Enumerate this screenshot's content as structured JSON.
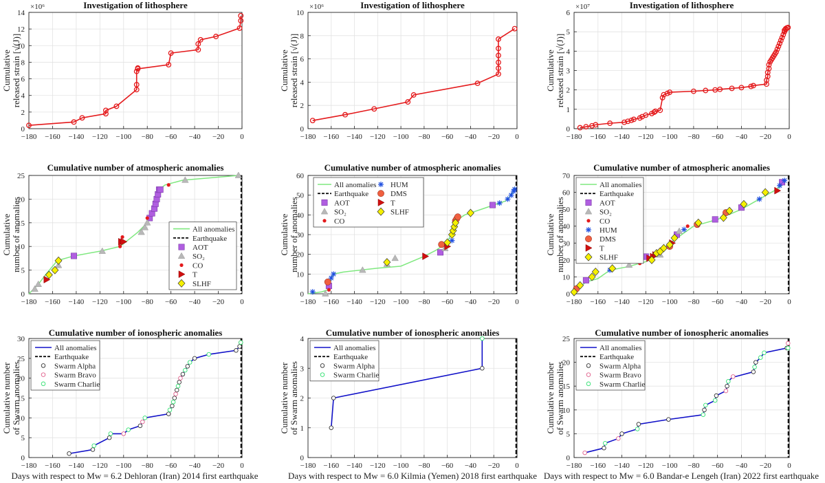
{
  "figure": {
    "panel_titles": {
      "litho": "Investigation of lithosphere",
      "atmo": "Cumulative number of atmospheric anomalies",
      "iono": "Cumulative number of ionospheric anomalies"
    },
    "ylabels": {
      "litho": [
        "Cumulative",
        "released strain [√(J)]"
      ],
      "atmo": [
        "Cumulative",
        "number of anomalies"
      ],
      "iono": [
        "Cumulative number",
        "of Swarm anomalies"
      ]
    },
    "column_xlabels": [
      "Days with respect to Mw = 6.2 Dehloran (Iran) 2014 first earthquake",
      "Days with respect to Mw = 6.0 Kilmia (Yemen) 2018 first earthquake",
      "Days with respect to Mw = 6.0 Bandar-e Lengeh (Iran) 2022 first earthquake"
    ],
    "multipliers": [
      "×10⁶",
      "×10⁶",
      "×10⁷"
    ]
  },
  "legend_labels": {
    "all": "All anomalies",
    "eq": "Earthquake",
    "AOT": "AOT",
    "SO2": "SO₂",
    "CO": "CO",
    "HUM": "HUM",
    "DMS": "DMS",
    "T": "T",
    "SLHF": "SLHF",
    "alpha": "Swarm Alpha",
    "bravo": "Swarm Bravo",
    "charlie": "Swarm Charlie"
  },
  "colors": {
    "litho_line": "#e41a1c",
    "atmo_line": "#7fe87f",
    "iono_line": "#1010c8",
    "AOT": "#b05ee0",
    "SO2": "#b8b8b8",
    "CO": "#e41a1c",
    "HUM": "#1f4fe0",
    "DMS": "#f06040",
    "T": "#d01010",
    "SLHF": "#f5f000",
    "alpha": "#333333",
    "bravo": "#e0608c",
    "charlie": "#30e070"
  },
  "chart_data": [
    {
      "id": "litho-1",
      "type": "line",
      "title": "Investigation of lithosphere",
      "xlim": [
        -180,
        0
      ],
      "ylim": [
        0,
        14000000
      ],
      "multiplier": "×10⁶",
      "xticks": [
        -180,
        -160,
        -140,
        -120,
        -100,
        -80,
        -60,
        -40,
        -20,
        0
      ],
      "yticks": [
        0,
        2,
        4,
        6,
        8,
        10,
        12,
        14
      ],
      "x": [
        -180,
        -142,
        -135,
        -115,
        -115,
        -106,
        -89,
        -89,
        -89,
        -88,
        -88,
        -62,
        -60,
        -37,
        -37,
        -35,
        -22,
        -2,
        -1,
        -1
      ],
      "y": [
        0.4,
        0.8,
        1.3,
        1.8,
        2.2,
        2.7,
        4.7,
        5.3,
        6.9,
        7.3,
        7.2,
        7.7,
        9.1,
        9.5,
        10.2,
        10.7,
        11.1,
        12.1,
        13.0,
        13.6
      ]
    },
    {
      "id": "litho-2",
      "type": "line",
      "title": "Investigation of lithosphere",
      "xlim": [
        -180,
        0
      ],
      "ylim": [
        0,
        10000000
      ],
      "multiplier": "×10⁶",
      "xticks": [
        -180,
        -160,
        -140,
        -120,
        -100,
        -80,
        -60,
        -40,
        -20,
        0
      ],
      "yticks": [
        0,
        2,
        4,
        6,
        8,
        10
      ],
      "x": [
        -176,
        -148,
        -123,
        -94,
        -89,
        -34,
        -16,
        -16,
        -16,
        -16,
        -16,
        -16,
        -2
      ],
      "y": [
        0.7,
        1.2,
        1.7,
        2.3,
        2.9,
        3.9,
        4.7,
        5.2,
        5.7,
        6.3,
        6.9,
        7.7,
        8.6
      ]
    },
    {
      "id": "litho-3",
      "type": "line",
      "title": "Investigation of lithosphere",
      "xlim": [
        -180,
        0
      ],
      "ylim": [
        0,
        60000000
      ],
      "multiplier": "×10⁷",
      "xticks": [
        -180,
        -160,
        -140,
        -120,
        -100,
        -80,
        -60,
        -40,
        -20,
        0
      ],
      "yticks": [
        0,
        1,
        2,
        3,
        4,
        5,
        6
      ],
      "x": [
        -175,
        -170,
        -165,
        -162,
        -150,
        -138,
        -135,
        -132,
        -130,
        -125,
        -123,
        -120,
        -115,
        -113,
        -112,
        -108,
        -106,
        -105,
        -102,
        -100,
        -80,
        -70,
        -62,
        -58,
        -48,
        -40,
        -32,
        -30,
        -19,
        -19,
        -18,
        -18,
        -17,
        -17,
        -16,
        -15,
        -14,
        -13,
        -12,
        -11,
        -10,
        -9,
        -8,
        -7,
        -6,
        -5,
        -4,
        -4,
        -3,
        -3,
        -2,
        -1
      ],
      "y": [
        0.05,
        0.1,
        0.15,
        0.2,
        0.28,
        0.33,
        0.38,
        0.43,
        0.48,
        0.55,
        0.62,
        0.7,
        0.78,
        0.85,
        0.9,
        0.95,
        1.6,
        1.75,
        1.82,
        1.88,
        1.93,
        1.97,
        2.0,
        2.03,
        2.08,
        2.12,
        2.18,
        2.22,
        2.3,
        2.5,
        2.7,
        2.9,
        3.1,
        3.3,
        3.45,
        3.55,
        3.65,
        3.75,
        3.85,
        3.95,
        4.1,
        4.25,
        4.4,
        4.55,
        4.7,
        4.85,
        5.0,
        5.08,
        5.12,
        5.16,
        5.2,
        5.22
      ]
    },
    {
      "id": "atmo-1",
      "type": "scatter",
      "title": "Cumulative number of atmospheric anomalies",
      "xlim": [
        -180,
        0
      ],
      "ylim": [
        0,
        25
      ],
      "xticks": [
        -180,
        -160,
        -140,
        -120,
        -100,
        -80,
        -60,
        -40,
        -20,
        0
      ],
      "yticks": [
        0,
        5,
        10,
        15,
        20,
        25
      ],
      "line_x": [
        -180,
        -172,
        -166,
        -156,
        -142,
        -120,
        -103,
        -88,
        -80,
        -70,
        -65,
        -50,
        -3
      ],
      "line_y": [
        0,
        2,
        4,
        7,
        8,
        9,
        10,
        13,
        15,
        22,
        23,
        24,
        25
      ],
      "series": [
        {
          "name": "AOT",
          "x": [
            -142,
            -78,
            -76,
            -74,
            -73,
            -72,
            -71,
            -70,
            -69
          ],
          "y": [
            8,
            16,
            17,
            18,
            19,
            20,
            21,
            22,
            22
          ]
        },
        {
          "name": "SO2",
          "x": [
            -175,
            -172,
            -155,
            -118,
            -85,
            -82,
            -80,
            -48,
            -3
          ],
          "y": [
            1,
            2,
            6,
            9,
            13,
            14,
            15,
            24,
            25
          ]
        },
        {
          "name": "CO",
          "x": [
            -103,
            -101,
            -80,
            -62
          ],
          "y": [
            10,
            12,
            16,
            23
          ]
        },
        {
          "name": "T",
          "x": [
            -165,
            -102,
            -100
          ],
          "y": [
            3,
            11,
            11
          ]
        },
        {
          "name": "SLHF",
          "x": [
            -163,
            -158,
            -155
          ],
          "y": [
            4,
            5,
            7
          ]
        }
      ],
      "legend": "lower right"
    },
    {
      "id": "atmo-2",
      "type": "scatter",
      "title": "Cumulative number of atmospheric anomalies",
      "xlim": [
        -180,
        0
      ],
      "ylim": [
        0,
        60
      ],
      "xticks": [
        -180,
        -160,
        -140,
        -120,
        -100,
        -80,
        -60,
        -40,
        -20,
        0
      ],
      "yticks": [
        0,
        10,
        20,
        30,
        40,
        50,
        60
      ],
      "line_x": [
        -180,
        -168,
        -163,
        -161,
        -160,
        -158,
        -150,
        -120,
        -100,
        -80,
        -70,
        -60,
        -55,
        -50,
        -45,
        -40,
        -30,
        -20,
        -10,
        -5,
        -2
      ],
      "line_y": [
        0,
        1,
        2,
        5,
        8,
        10,
        11,
        13,
        14,
        19,
        22,
        26,
        33,
        38,
        40,
        41,
        43,
        45,
        47,
        50,
        54
      ],
      "series": [
        {
          "name": "AOT",
          "x": [
            -162,
            -66,
            -21
          ],
          "y": [
            4,
            21,
            45
          ]
        },
        {
          "name": "SO2",
          "x": [
            -165,
            -133,
            -112,
            -105,
            -62
          ],
          "y": [
            0,
            12,
            15,
            18,
            23
          ]
        },
        {
          "name": "CO",
          "x": [
            -162
          ],
          "y": [
            2
          ]
        },
        {
          "name": "HUM",
          "x": [
            -176,
            -160,
            -158,
            -56,
            -15,
            -8,
            -5,
            -3,
            -2
          ],
          "y": [
            1,
            8,
            10,
            27,
            46,
            48,
            50,
            52,
            53
          ]
        },
        {
          "name": "DMS",
          "x": [
            -163,
            -65,
            -53,
            -52,
            -51
          ],
          "y": [
            6,
            25,
            37,
            38,
            39
          ]
        },
        {
          "name": "T",
          "x": [
            -79,
            -60
          ],
          "y": [
            19,
            24
          ]
        },
        {
          "name": "SLHF",
          "x": [
            -112,
            -60,
            -56,
            -55,
            -54,
            -53,
            -40
          ],
          "y": [
            16,
            26,
            30,
            32,
            34,
            36,
            41
          ]
        }
      ],
      "legend": "upper left"
    },
    {
      "id": "atmo-3",
      "type": "scatter",
      "title": "Cumulative number of atmospheric anomalies",
      "xlim": [
        -180,
        0
      ],
      "ylim": [
        0,
        70
      ],
      "xticks": [
        -180,
        -160,
        -140,
        -120,
        -100,
        -80,
        -60,
        -40,
        -20,
        0
      ],
      "yticks": [
        0,
        10,
        20,
        30,
        40,
        50,
        60,
        70
      ],
      "line_x": [
        -180,
        -175,
        -170,
        -160,
        -150,
        -135,
        -120,
        -110,
        -100,
        -90,
        -80,
        -70,
        -60,
        -50,
        -40,
        -30,
        -20,
        -10,
        -5,
        -3
      ],
      "line_y": [
        0,
        4,
        7,
        9,
        14,
        16,
        19,
        24,
        30,
        35,
        40,
        42,
        44,
        47,
        50,
        54,
        58,
        62,
        65,
        67
      ],
      "series": [
        {
          "name": "AOT",
          "x": [
            -170,
            -120,
            -94,
            -62,
            -40,
            -6
          ],
          "y": [
            8,
            22,
            35,
            44,
            51,
            66
          ]
        },
        {
          "name": "SO2",
          "x": [
            -134,
            -108,
            -92
          ],
          "y": [
            17,
            23,
            37
          ]
        },
        {
          "name": "CO",
          "x": [
            -125,
            -108,
            -85
          ],
          "y": [
            18,
            26,
            40
          ]
        },
        {
          "name": "HUM",
          "x": [
            -150,
            -88,
            -25,
            -8,
            -4
          ],
          "y": [
            14,
            38,
            56,
            64,
            67
          ]
        },
        {
          "name": "DMS",
          "x": [
            -178,
            -100,
            -77,
            -53
          ],
          "y": [
            3,
            28,
            41,
            48
          ]
        },
        {
          "name": "T",
          "x": [
            -117,
            -114,
            -112,
            -98,
            -10
          ],
          "y": [
            21,
            22,
            23,
            30,
            61
          ]
        },
        {
          "name": "SLHF",
          "x": [
            -180,
            -175,
            -165,
            -162,
            -148,
            -115,
            -111,
            -108,
            -105,
            -100,
            -96,
            -76,
            -55,
            -50,
            -38,
            -20
          ],
          "y": [
            1,
            5,
            10,
            13,
            15,
            20,
            24,
            25,
            27,
            29,
            33,
            42,
            45,
            49,
            53,
            60
          ]
        }
      ],
      "legend": "upper left"
    },
    {
      "id": "iono-1",
      "type": "line",
      "title": "Cumulative number of ionospheric anomalies",
      "xlim": [
        -180,
        0
      ],
      "ylim": [
        0,
        30
      ],
      "xticks": [
        -180,
        -160,
        -140,
        -120,
        -100,
        -80,
        -60,
        -40,
        -20,
        0
      ],
      "yticks": [
        0,
        5,
        10,
        15,
        20,
        25,
        30
      ],
      "x": [
        -146,
        -126,
        -125,
        -112,
        -111,
        -100,
        -96,
        -86,
        -84,
        -82,
        -62,
        -61,
        -59,
        -58,
        -57,
        -56,
        -55,
        -54,
        -53,
        -52,
        -50,
        -48,
        -46,
        -44,
        -40,
        -28,
        -5,
        -2,
        -1,
        -1
      ],
      "y": [
        1,
        2,
        3,
        5,
        6,
        6,
        7,
        8,
        9,
        10,
        11,
        12,
        13,
        14,
        15,
        16,
        17,
        18,
        19,
        20,
        21,
        22,
        23,
        24,
        25,
        26,
        27,
        28,
        29,
        29
      ],
      "markers": [
        {
          "name": "alpha",
          "x": [
            -146,
            -126,
            -112,
            -86,
            -62,
            -59,
            -57,
            -55,
            -53,
            -50,
            -46,
            -40,
            -5,
            -2
          ],
          "y": [
            1,
            2,
            5,
            8,
            11,
            13,
            15,
            17,
            19,
            21,
            23,
            25,
            27,
            28
          ]
        },
        {
          "name": "bravo",
          "x": [
            -100,
            -84,
            -56,
            -52,
            -1
          ],
          "y": [
            6,
            9,
            16,
            20,
            29
          ]
        },
        {
          "name": "charlie",
          "x": [
            -125,
            -111,
            -96,
            -82,
            -61,
            -58,
            -54,
            -48,
            -44,
            -28,
            -1
          ],
          "y": [
            3,
            6,
            7,
            10,
            12,
            14,
            18,
            22,
            24,
            26,
            29
          ]
        }
      ],
      "legend": "upper left"
    },
    {
      "id": "iono-2",
      "type": "line",
      "title": "Cumulative number of ionospheric anomalies",
      "xlim": [
        -180,
        0
      ],
      "ylim": [
        0,
        4
      ],
      "xticks": [
        -180,
        -160,
        -140,
        -120,
        -100,
        -80,
        -60,
        -40,
        -20,
        0
      ],
      "yticks": [
        0,
        1,
        2,
        3,
        4
      ],
      "x": [
        -160,
        -158,
        -30,
        -30
      ],
      "y": [
        1,
        2,
        3,
        4
      ],
      "markers": [
        {
          "name": "alpha",
          "x": [
            -160,
            -158,
            -30
          ],
          "y": [
            1,
            2,
            3
          ]
        },
        {
          "name": "charlie",
          "x": [
            -30
          ],
          "y": [
            4
          ]
        }
      ],
      "legend": "upper left"
    },
    {
      "id": "iono-3",
      "type": "line",
      "title": "Cumulative number of ionospheric anomalies",
      "xlim": [
        -180,
        0
      ],
      "ylim": [
        0,
        25
      ],
      "xticks": [
        -180,
        -160,
        -140,
        -120,
        -100,
        -80,
        -60,
        -40,
        -20,
        0
      ],
      "yticks": [
        0,
        5,
        10,
        15,
        20,
        25
      ],
      "x": [
        -171,
        -155,
        -154,
        -143,
        -140,
        -127,
        -126,
        -101,
        -72,
        -71,
        -70,
        -62,
        -61,
        -53,
        -52,
        -51,
        -47,
        -45,
        -30,
        -29,
        -28,
        -24,
        -21,
        -2,
        -1,
        -1
      ],
      "y": [
        1,
        2,
        3,
        4,
        5,
        6,
        7,
        8,
        9,
        10,
        11,
        12,
        13,
        14,
        15,
        16,
        17,
        17,
        18,
        19,
        20,
        21,
        22,
        23,
        23,
        24
      ],
      "markers": [
        {
          "name": "alpha",
          "x": [
            -155,
            -140,
            -126,
            -101,
            -71,
            -61,
            -52,
            -30,
            -28,
            -2
          ],
          "y": [
            2,
            5,
            7,
            8,
            10,
            13,
            15,
            18,
            20,
            23
          ]
        },
        {
          "name": "bravo",
          "x": [
            -171,
            -143,
            -53,
            -47,
            -1
          ],
          "y": [
            1,
            4,
            14,
            17,
            24
          ]
        },
        {
          "name": "charlie",
          "x": [
            -154,
            -127,
            -72,
            -70,
            -62,
            -51,
            -29,
            -24,
            -21,
            -1
          ],
          "y": [
            3,
            6,
            9,
            11,
            12,
            16,
            19,
            21,
            22,
            23
          ]
        }
      ],
      "legend": "upper left"
    }
  ]
}
